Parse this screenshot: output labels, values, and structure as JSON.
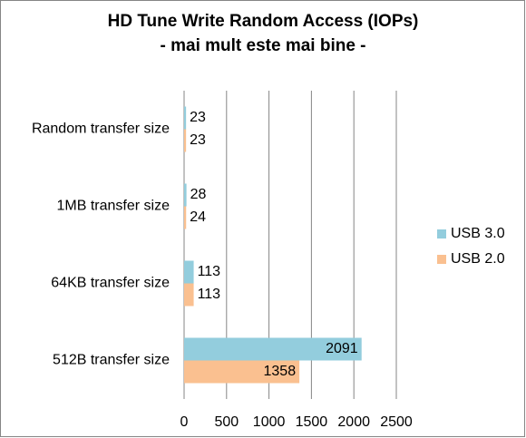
{
  "chart_data": {
    "type": "bar",
    "orientation": "horizontal",
    "title": "HD Tune Write Random Access (IOPs)",
    "subtitle": "- mai mult este mai bine -",
    "categories": [
      "Random transfer size",
      "1MB transfer size",
      "64KB transfer size",
      "512B transfer size"
    ],
    "series": [
      {
        "name": "USB 3.0",
        "color": "#93cddd",
        "values": [
          23,
          28,
          113,
          2091
        ]
      },
      {
        "name": "USB 2.0",
        "color": "#fac090",
        "values": [
          23,
          24,
          113,
          1358
        ]
      }
    ],
    "xlim": [
      0,
      2500
    ],
    "xticks": [
      0,
      500,
      1000,
      1500,
      2000,
      2500
    ],
    "grid": true,
    "legend": "right"
  }
}
